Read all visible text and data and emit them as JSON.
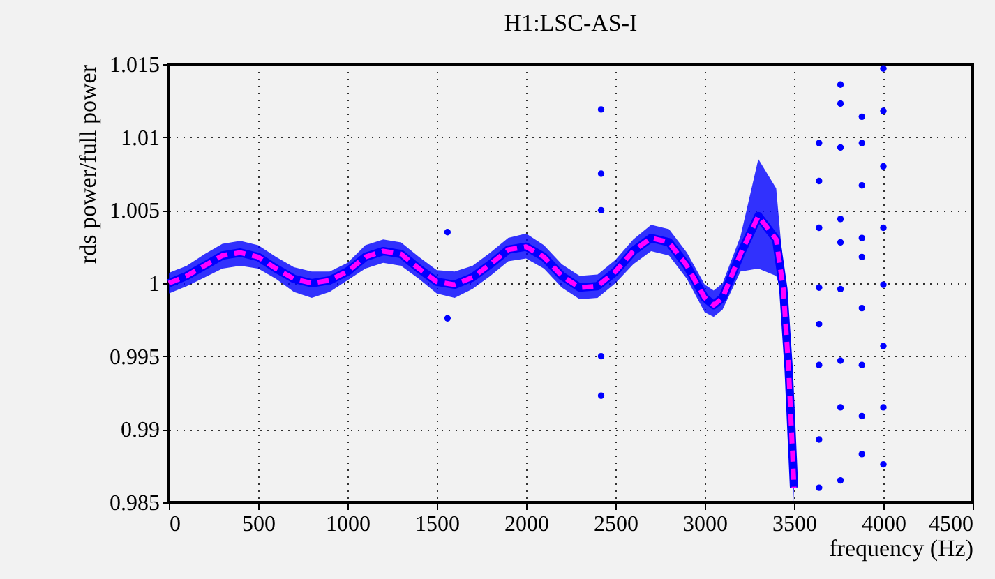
{
  "chart_data": {
    "type": "line",
    "title": "H1:LSC-AS-I",
    "xlabel": "frequency (Hz)",
    "ylabel": "rds power/full power",
    "xlim": [
      0,
      4500
    ],
    "xticks": [
      0,
      500,
      1000,
      1500,
      2000,
      2500,
      3000,
      3500,
      4000,
      4500
    ],
    "ylim": [
      0.985,
      1.015
    ],
    "yticks": [
      0.985,
      0.99,
      0.995,
      1,
      1.005,
      1.01,
      1.015
    ],
    "grid": true,
    "legend": false,
    "series": [
      {
        "type": "line",
        "color": "#0000ff",
        "x": [
          0,
          100,
          200,
          300,
          400,
          500,
          600,
          700,
          800,
          900,
          1000,
          1100,
          1200,
          1300,
          1400,
          1500,
          1600,
          1700,
          1800,
          1900,
          2000,
          2100,
          2200,
          2300,
          2400,
          2500,
          2600,
          2700,
          2800,
          2900,
          3000,
          3050,
          3100,
          3200,
          3300,
          3400,
          3440,
          3470,
          3500
        ],
        "values": [
          1.0,
          1.0005,
          1.0012,
          1.0019,
          1.0021,
          1.0018,
          1.001,
          1.0003,
          1.0,
          1.0002,
          1.0008,
          1.0018,
          1.0022,
          1.002,
          1.001,
          1.0001,
          0.9999,
          1.0004,
          1.0013,
          1.0023,
          1.0025,
          1.0018,
          1.0005,
          0.9997,
          0.9998,
          1.0008,
          1.0022,
          1.0031,
          1.0028,
          1.0012,
          0.999,
          0.9985,
          0.999,
          1.002,
          1.0046,
          1.003,
          0.9996,
          0.9941,
          0.986
        ],
        "lower": [
          0.9993,
          0.9998,
          1.0004,
          1.001,
          1.0012,
          1.001,
          1.0003,
          0.9994,
          0.999,
          0.9994,
          1.0002,
          1.001,
          1.0014,
          1.0012,
          1.0003,
          0.9993,
          0.999,
          0.9996,
          1.0005,
          1.0015,
          1.0017,
          1.001,
          0.9997,
          0.9989,
          0.999,
          1.0,
          1.0013,
          1.0022,
          1.0019,
          1.0003,
          0.998,
          0.9977,
          0.9982,
          1.0008,
          1.001,
          1.0005,
          0.999,
          0.993,
          0.985
        ],
        "upper": [
          1.0007,
          1.0012,
          1.002,
          1.0027,
          1.0029,
          1.0026,
          1.0018,
          1.0011,
          1.0008,
          1.0008,
          1.0014,
          1.0026,
          1.003,
          1.0028,
          1.0018,
          1.0009,
          1.0008,
          1.0012,
          1.0021,
          1.0031,
          1.0034,
          1.0026,
          1.0013,
          1.0005,
          1.0006,
          1.0016,
          1.003,
          1.004,
          1.0037,
          1.0021,
          0.9999,
          0.9995,
          1.0,
          1.0032,
          1.0085,
          1.0065,
          1.001,
          0.9955,
          0.988
        ]
      },
      {
        "type": "line",
        "color": "#ff00ff",
        "line_style": "dashed",
        "x": [
          0,
          100,
          200,
          300,
          400,
          500,
          600,
          700,
          800,
          900,
          1000,
          1100,
          1200,
          1300,
          1400,
          1500,
          1600,
          1700,
          1800,
          1900,
          2000,
          2100,
          2200,
          2300,
          2400,
          2500,
          2600,
          2700,
          2800,
          2900,
          3000,
          3050,
          3100,
          3200,
          3300,
          3400,
          3440,
          3470,
          3500
        ],
        "values": [
          1.0,
          1.0005,
          1.0012,
          1.0019,
          1.0021,
          1.0018,
          1.001,
          1.0003,
          1.0,
          1.0002,
          1.0008,
          1.0018,
          1.0022,
          1.002,
          1.001,
          1.0001,
          0.9999,
          1.0004,
          1.0013,
          1.0023,
          1.0025,
          1.0018,
          1.0005,
          0.9997,
          0.9998,
          1.0008,
          1.0022,
          1.0031,
          1.0028,
          1.0012,
          0.999,
          0.9985,
          0.999,
          1.002,
          1.0046,
          1.003,
          0.9996,
          0.9941,
          0.986
        ]
      },
      {
        "type": "scatter",
        "color": "#0000ff",
        "marker": "circle",
        "x": [
          1560,
          1560,
          2420,
          2420,
          2420,
          2420,
          2420,
          3640,
          3640,
          3640,
          3640,
          3640,
          3640,
          3640,
          3640,
          3760,
          3760,
          3760,
          3760,
          3760,
          3760,
          3760,
          3760,
          3760,
          3880,
          3880,
          3880,
          3880,
          3880,
          3880,
          3880,
          3880,
          3880,
          4000,
          4000,
          4000,
          4000,
          4000,
          4000,
          4000,
          4000
        ],
        "values": [
          1.0035,
          0.9976,
          1.0075,
          0.9923,
          1.0119,
          1.005,
          0.995,
          1.0096,
          1.007,
          1.0038,
          0.9997,
          0.9972,
          0.9944,
          0.9893,
          0.986,
          1.0136,
          1.0123,
          1.0093,
          1.0044,
          1.0028,
          0.9996,
          0.9947,
          0.9915,
          0.9865,
          1.0114,
          1.0096,
          1.0067,
          1.0031,
          1.0018,
          0.9983,
          0.9944,
          0.9909,
          0.9883,
          1.0147,
          1.0118,
          1.008,
          1.0038,
          0.9999,
          0.9957,
          0.9915,
          0.9876
        ]
      }
    ]
  }
}
